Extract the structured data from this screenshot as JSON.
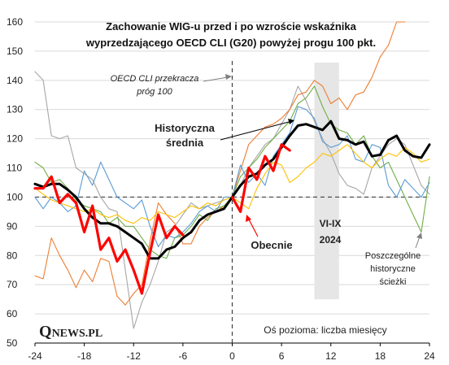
{
  "chart_data": {
    "type": "line",
    "title_lines": [
      "Zachowanie WIG-u przed i po wzroście wskaźnika",
      "wyprzedzającego OECD CLI (G20) powyżej progu 100 pkt."
    ],
    "xlabel": "Oś pozioma: liczba miesięcy",
    "ylabel": "",
    "xlim": [
      -24,
      24
    ],
    "ylim": [
      50,
      160
    ],
    "x_ticks": [
      "-24",
      "-18",
      "-12",
      "-6",
      "0",
      "6",
      "12",
      "18",
      "24"
    ],
    "y_ticks": [
      "50",
      "60",
      "70",
      "80",
      "90",
      "100",
      "110",
      "120",
      "130",
      "140",
      "150",
      "160"
    ],
    "shaded_period": {
      "x_start": 10,
      "x_end": 13,
      "label_lines": [
        "VI-IX",
        "2024"
      ]
    },
    "reference_lines": {
      "x": 0,
      "y": 100
    },
    "annotations": {
      "threshold": [
        "OECD CLI przekracza",
        "próg 100"
      ],
      "average": [
        "Historyczna",
        "średnia"
      ],
      "current": "Obecnie",
      "paths": [
        "Poszczególne",
        "historyczne",
        "ścieżki"
      ]
    },
    "logo": "QNEWS.PL",
    "colors": {
      "average": "#000000",
      "current": "#ff0000",
      "grid": "#d9d9d9",
      "shade": "#e6e6e6",
      "path_gray": "#a6a6a6",
      "path_orange": "#ed7d31",
      "path_green": "#70ad47",
      "path_blue": "#5b9bd5",
      "path_yellow": "#ffc000"
    },
    "series": [
      {
        "role": "path",
        "color": "#a6a6a6",
        "x_start": -24,
        "values": [
          143,
          140,
          121,
          120,
          121,
          110,
          108,
          106,
          100,
          96,
          95,
          75,
          55,
          64,
          70,
          78,
          88,
          90,
          94,
          98,
          96,
          97,
          98,
          99,
          100,
          104,
          110,
          114,
          118,
          120,
          125,
          130,
          138,
          133,
          126,
          120,
          115,
          108,
          104,
          103,
          101,
          110,
          114,
          118,
          120,
          118,
          111,
          104,
          101
        ]
      },
      {
        "role": "path",
        "color": "#ed7d31",
        "x_start": -24,
        "values": [
          73,
          72,
          86,
          80,
          75,
          69,
          75,
          71,
          79,
          78,
          66,
          63,
          67,
          70,
          85,
          98,
          94,
          91,
          84,
          84,
          90,
          93,
          95,
          97,
          100,
          109,
          118,
          121,
          124,
          125,
          127,
          130,
          135,
          136,
          140,
          138,
          132,
          134,
          130,
          135,
          136,
          141,
          148,
          152,
          160,
          160,
          null,
          null,
          null
        ]
      },
      {
        "role": "path",
        "color": "#70ad47",
        "x_start": -24,
        "values": [
          112,
          110,
          105,
          106,
          103,
          99,
          97,
          96,
          95,
          91,
          93,
          90,
          90,
          86,
          82,
          80,
          79,
          86,
          87,
          90,
          94,
          92,
          96,
          97,
          100,
          107,
          110,
          113,
          117,
          120,
          123,
          126,
          132,
          134,
          138,
          131,
          125,
          123,
          122,
          118,
          121,
          114,
          110,
          112,
          106,
          100,
          94,
          88,
          107
        ]
      },
      {
        "role": "path",
        "color": "#5b9bd5",
        "x_start": -24,
        "values": [
          100,
          96,
          100,
          98,
          95,
          97,
          109,
          104,
          112,
          106,
          100,
          98,
          96,
          99,
          90,
          83,
          87,
          86,
          88,
          91,
          95,
          97,
          95,
          100,
          100,
          111,
          105,
          108,
          104,
          114,
          118,
          122,
          131,
          130,
          127,
          119,
          117,
          118,
          121,
          113,
          112,
          118,
          117,
          104,
          100,
          106,
          103,
          100,
          105
        ]
      },
      {
        "role": "path",
        "color": "#ffc000",
        "x_start": -24,
        "values": [
          103,
          101,
          99,
          98,
          97,
          96,
          95,
          96,
          94,
          93,
          94,
          92,
          91,
          93,
          92,
          95,
          94,
          93,
          95,
          97,
          96,
          98,
          97,
          99,
          100,
          98,
          96,
          103,
          108,
          112,
          111,
          105,
          107,
          110,
          112,
          115,
          114,
          116,
          118,
          115,
          112,
          110,
          113,
          115,
          114,
          117,
          115,
          112,
          113
        ]
      },
      {
        "role": "average",
        "color": "#000000",
        "x_start": -24,
        "values": [
          104.5,
          103.5,
          104.5,
          104.5,
          102.5,
          100,
          96,
          93,
          91,
          91,
          90,
          88,
          86,
          84,
          79,
          79,
          82,
          83,
          86,
          88,
          92,
          94,
          95,
          96,
          100,
          104,
          107,
          108,
          111,
          113,
          117,
          121,
          124.5,
          125,
          124,
          123,
          126,
          120,
          119.5,
          118,
          119,
          114,
          114.5,
          119.5,
          121,
          116,
          114,
          113.5,
          118
        ]
      },
      {
        "role": "current",
        "color": "#ff0000",
        "x_start": -24,
        "values": [
          103,
          103,
          107,
          98,
          101,
          98,
          88,
          97,
          82,
          86,
          78,
          82,
          75,
          67,
          81,
          94,
          86,
          90,
          87,
          null,
          null,
          null,
          null,
          null,
          100,
          95,
          110,
          106,
          114,
          109,
          118,
          116,
          null,
          null,
          null,
          null,
          null,
          null,
          null,
          null,
          null,
          null,
          null,
          null,
          null,
          null,
          null,
          null,
          null
        ]
      }
    ]
  }
}
